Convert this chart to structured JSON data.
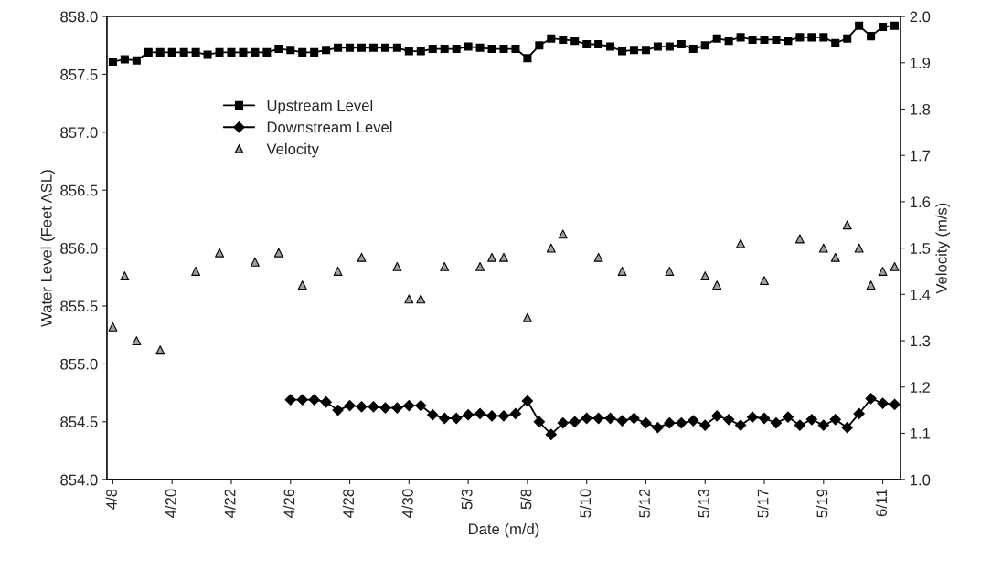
{
  "chart_data": {
    "type": "line",
    "xlabel": "Date (m/d)",
    "ylabel": "Water Level (Feet ASL)",
    "y2label": "Velocity (m/s)",
    "categories": [
      "4/8",
      null,
      null,
      null,
      null,
      "4/20",
      null,
      null,
      null,
      null,
      "4/22",
      null,
      null,
      null,
      null,
      "4/26",
      null,
      null,
      null,
      null,
      "4/28",
      null,
      null,
      null,
      null,
      "4/30",
      null,
      null,
      null,
      null,
      "5/3",
      null,
      null,
      null,
      null,
      "5/8",
      null,
      null,
      null,
      null,
      "5/10",
      null,
      null,
      null,
      null,
      "5/12",
      null,
      null,
      null,
      null,
      "5/13",
      null,
      null,
      null,
      null,
      "5/17",
      null,
      null,
      null,
      null,
      "5/19",
      null,
      null,
      null,
      null,
      "6/11",
      null
    ],
    "ylim": [
      854.0,
      858.0
    ],
    "yticks": [
      {
        "value": 854.0,
        "label": "854.0"
      },
      {
        "value": 854.5,
        "label": "854.5"
      },
      {
        "value": 855.0,
        "label": "855.0"
      },
      {
        "value": 855.5,
        "label": "855.5"
      },
      {
        "value": 856.0,
        "label": "856.0"
      },
      {
        "value": 856.5,
        "label": "856.5"
      },
      {
        "value": 857.0,
        "label": "857.0"
      },
      {
        "value": 857.5,
        "label": "857.5"
      },
      {
        "value": 858.0,
        "label": "858.0"
      }
    ],
    "y2lim": [
      1.0,
      2.0
    ],
    "y2ticks": [
      {
        "value": 1.0,
        "label": "1.0"
      },
      1.1,
      1.2,
      1.3,
      1.4,
      1.5,
      1.6,
      1.7,
      1.8,
      1.9,
      {
        "value": 2.0,
        "label": "2.0"
      }
    ],
    "legend": "top left",
    "grid": false,
    "series": [
      {
        "name": "Upstream Level",
        "marker": "square",
        "color": "#000000",
        "values": [
          857.61,
          857.63,
          857.62,
          857.69,
          857.69,
          857.69,
          857.69,
          857.69,
          857.67,
          857.69,
          857.69,
          857.69,
          857.69,
          857.69,
          857.72,
          857.71,
          857.69,
          857.69,
          857.71,
          857.73,
          857.73,
          857.73,
          857.73,
          857.73,
          857.73,
          857.7,
          857.7,
          857.72,
          857.72,
          857.72,
          857.74,
          857.73,
          857.72,
          857.72,
          857.72,
          857.64,
          857.75,
          857.81,
          857.8,
          857.79,
          857.76,
          857.76,
          857.74,
          857.7,
          857.71,
          857.71,
          857.74,
          857.74,
          857.76,
          857.72,
          857.75,
          857.81,
          857.79,
          857.82,
          857.8,
          857.8,
          857.8,
          857.79,
          857.82,
          857.82,
          857.82,
          857.77,
          857.81,
          857.92,
          857.83,
          857.91,
          857.92
        ]
      },
      {
        "name": "Downstream Level",
        "marker": "diamond",
        "color": "#000000",
        "values": [
          null,
          null,
          null,
          null,
          null,
          null,
          null,
          null,
          null,
          null,
          null,
          null,
          null,
          null,
          null,
          854.69,
          854.69,
          854.69,
          854.67,
          854.6,
          854.64,
          854.63,
          854.63,
          854.62,
          854.62,
          854.64,
          854.64,
          854.56,
          854.53,
          854.53,
          854.56,
          854.57,
          854.55,
          854.55,
          854.57,
          854.68,
          854.5,
          854.39,
          854.49,
          854.5,
          854.53,
          854.53,
          854.53,
          854.51,
          854.53,
          854.49,
          854.45,
          854.49,
          854.49,
          854.51,
          854.47,
          854.55,
          854.52,
          854.47,
          854.54,
          854.53,
          854.49,
          854.54,
          854.47,
          854.52,
          854.47,
          854.52,
          854.45,
          854.57,
          854.7,
          854.66,
          854.65
        ]
      },
      {
        "name": "Velocity",
        "type": "scatter",
        "marker": "triangle",
        "axis": "y2",
        "color": "#a0a0a0",
        "values": [
          1.33,
          1.44,
          1.3,
          null,
          1.28,
          null,
          null,
          1.45,
          null,
          1.49,
          null,
          null,
          1.47,
          null,
          1.49,
          null,
          1.42,
          null,
          null,
          1.45,
          null,
          1.48,
          null,
          null,
          1.46,
          1.39,
          1.39,
          null,
          1.46,
          null,
          null,
          1.46,
          1.48,
          1.48,
          null,
          1.35,
          null,
          1.5,
          1.53,
          null,
          null,
          1.48,
          null,
          1.45,
          null,
          null,
          null,
          1.45,
          null,
          null,
          1.44,
          1.42,
          null,
          1.51,
          null,
          1.43,
          null,
          null,
          1.52,
          null,
          1.5,
          1.48,
          1.55,
          1.5,
          1.42,
          1.45,
          1.46
        ]
      }
    ]
  }
}
